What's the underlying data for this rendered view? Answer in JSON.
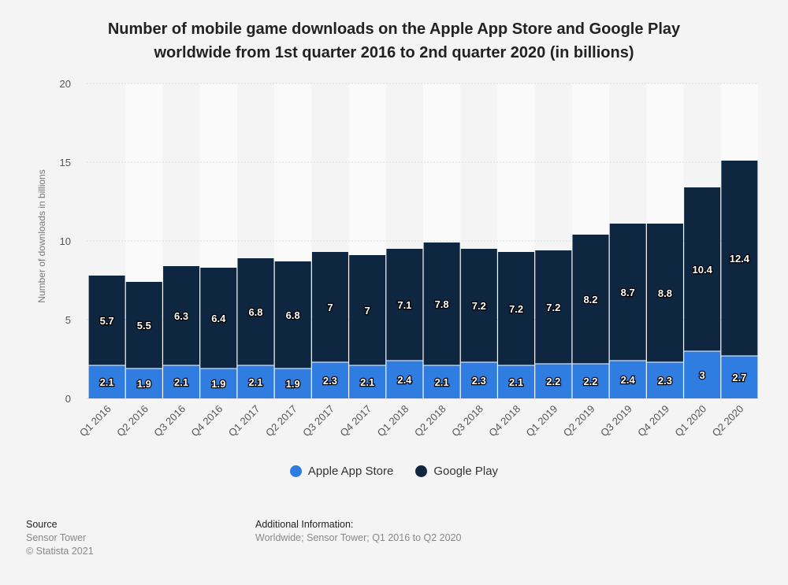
{
  "title_line1": "Number of mobile game downloads on the Apple App Store and Google Play",
  "title_line2": "worldwide from 1st quarter 2016 to 2nd quarter 2020 (in billions)",
  "colors": {
    "apple": "#2f7de1",
    "google": "#0f2640",
    "grid": "#d9d9d9",
    "band": "#fafafa"
  },
  "chart_data": {
    "type": "bar",
    "stacked": true,
    "categories": [
      "Q1 2016",
      "Q2 2016",
      "Q3 2016",
      "Q4 2016",
      "Q1 2017",
      "Q2 2017",
      "Q3 2017",
      "Q4 2017",
      "Q1 2018",
      "Q2 2018",
      "Q3 2018",
      "Q4 2018",
      "Q1 2019",
      "Q2 2019",
      "Q3 2019",
      "Q4 2019",
      "Q1 2020",
      "Q2 2020"
    ],
    "series": [
      {
        "name": "Apple App Store",
        "values": [
          2.1,
          1.9,
          2.1,
          1.9,
          2.1,
          1.9,
          2.3,
          2.1,
          2.4,
          2.1,
          2.3,
          2.1,
          2.2,
          2.2,
          2.4,
          2.3,
          3,
          2.7
        ]
      },
      {
        "name": "Google Play",
        "values": [
          5.7,
          5.5,
          6.3,
          6.4,
          6.8,
          6.8,
          7,
          7,
          7.1,
          7.8,
          7.2,
          7.2,
          7.2,
          8.2,
          8.7,
          8.8,
          10.4,
          12.4
        ]
      }
    ],
    "ylabel": "Number of downloads in billions",
    "ylim": [
      0,
      20
    ],
    "yticks": [
      0,
      5,
      10,
      15,
      20
    ],
    "legend_position": "bottom",
    "grid": true
  },
  "footer": {
    "source_label": "Source",
    "source_value": "Sensor Tower",
    "copyright": "© Statista 2021",
    "additional_label": "Additional Information:",
    "additional_value": "Worldwide; Sensor Tower; Q1 2016 to Q2 2020"
  }
}
